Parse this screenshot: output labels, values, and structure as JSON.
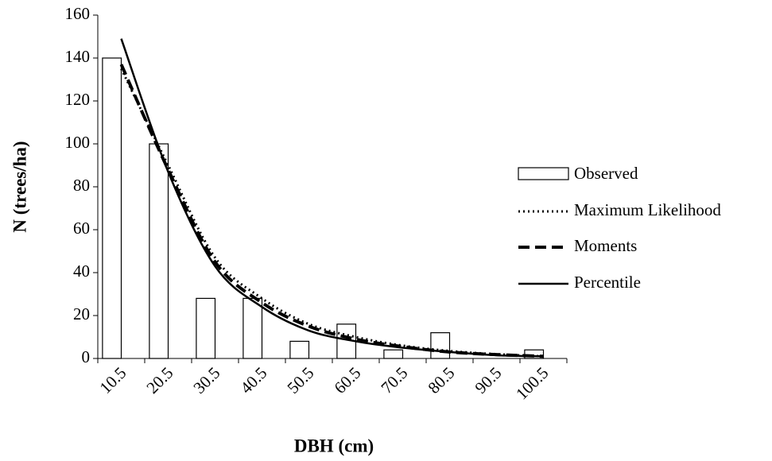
{
  "chart_data": {
    "type": "combo",
    "xlabel": "DBH (cm)",
    "ylabel": "N (trees/ha)",
    "categories": [
      "10.5",
      "20.5",
      "30.5",
      "40.5",
      "50.5",
      "60.5",
      "70.5",
      "80.5",
      "90.5",
      "100.5"
    ],
    "series": [
      {
        "name": "Observed",
        "type": "bar",
        "color": "#000000",
        "values": [
          140,
          100,
          28,
          28,
          8,
          16,
          4,
          12,
          0,
          4
        ]
      },
      {
        "name": "Maximum Likelihood",
        "type": "line",
        "dash": "dotted",
        "color": "#000000",
        "values": [
          135,
          90,
          47,
          28,
          16,
          10,
          6,
          3.5,
          2,
          1
        ]
      },
      {
        "name": "Moments",
        "type": "line",
        "dash": "dashed",
        "color": "#000000",
        "values": [
          137,
          88,
          45,
          26,
          15,
          9,
          5.5,
          3,
          1.8,
          1
        ]
      },
      {
        "name": "Percentile",
        "type": "line",
        "dash": "solid",
        "color": "#000000",
        "values": [
          149,
          87,
          43,
          24,
          13,
          8,
          5,
          3,
          1.5,
          1
        ]
      }
    ],
    "ylim": [
      0,
      160
    ],
    "yticks": [
      0,
      20,
      40,
      60,
      80,
      100,
      120,
      140,
      160
    ],
    "legend": "right"
  }
}
